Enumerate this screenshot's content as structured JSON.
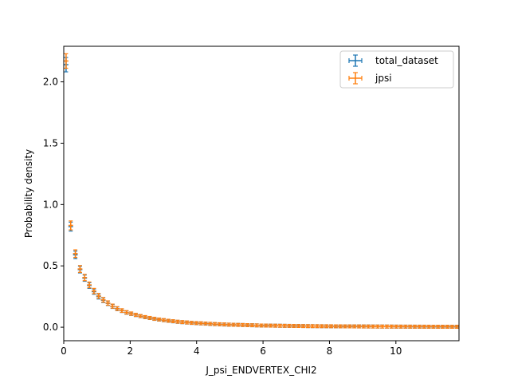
{
  "chart_data": {
    "type": "scatter",
    "title": "",
    "xlabel": "J_psi_ENDVERTEX_CHI2",
    "ylabel": "Probability density",
    "xlim": [
      0,
      11.9
    ],
    "ylim": [
      -0.11,
      2.29
    ],
    "xticks": [
      0,
      2,
      4,
      6,
      8,
      10
    ],
    "yticks": [
      0.0,
      0.5,
      1.0,
      1.5,
      2.0
    ],
    "xtick_labels": [
      "0",
      "2",
      "4",
      "6",
      "8",
      "10"
    ],
    "ytick_labels": [
      "0.0",
      "0.5",
      "1.0",
      "1.5",
      "2.0"
    ],
    "legend": "top-right",
    "grid": false,
    "bin_width": 0.14,
    "series": [
      {
        "name": "total_dataset",
        "color": "#1f77b4",
        "x": [
          0.07,
          0.21,
          0.35,
          0.49,
          0.63,
          0.77,
          0.91,
          1.05,
          1.19,
          1.33,
          1.47,
          1.61,
          1.75,
          1.89,
          2.03,
          2.17,
          2.31,
          2.45,
          2.59,
          2.73,
          2.87,
          3.01,
          3.15,
          3.29,
          3.43,
          3.57,
          3.71,
          3.85,
          3.99,
          4.13,
          4.27,
          4.41,
          4.55,
          4.69,
          4.83,
          4.97,
          5.11,
          5.25,
          5.39,
          5.53,
          5.67,
          5.81,
          5.95,
          6.09,
          6.23,
          6.37,
          6.51,
          6.65,
          6.79,
          6.93,
          7.07,
          7.21,
          7.35,
          7.49,
          7.63,
          7.77,
          7.91,
          8.05,
          8.19,
          8.33,
          8.47,
          8.61,
          8.75,
          8.89,
          9.03,
          9.17,
          9.31,
          9.45,
          9.59,
          9.73,
          9.87,
          10.01,
          10.15,
          10.29,
          10.43,
          10.57,
          10.71,
          10.85,
          10.99,
          11.13,
          11.27,
          11.41,
          11.55,
          11.69,
          11.83
        ],
        "y": [
          2.14,
          0.82,
          0.59,
          0.47,
          0.4,
          0.34,
          0.29,
          0.25,
          0.22,
          0.195,
          0.17,
          0.15,
          0.135,
          0.12,
          0.11,
          0.1,
          0.09,
          0.082,
          0.075,
          0.068,
          0.062,
          0.057,
          0.052,
          0.048,
          0.044,
          0.041,
          0.038,
          0.035,
          0.033,
          0.031,
          0.029,
          0.027,
          0.025,
          0.024,
          0.022,
          0.021,
          0.02,
          0.019,
          0.018,
          0.017,
          0.016,
          0.015,
          0.014,
          0.0135,
          0.013,
          0.0125,
          0.012,
          0.0115,
          0.011,
          0.0105,
          0.01,
          0.0095,
          0.009,
          0.0088,
          0.0085,
          0.0082,
          0.008,
          0.0078,
          0.0075,
          0.0072,
          0.007,
          0.0068,
          0.0066,
          0.0064,
          0.0062,
          0.006,
          0.0058,
          0.0056,
          0.0055,
          0.0054,
          0.0052,
          0.005,
          0.0049,
          0.0048,
          0.0047,
          0.0046,
          0.0045,
          0.0044,
          0.0043,
          0.0042,
          0.0041,
          0.004,
          0.0039,
          0.0038,
          0.0037
        ]
      },
      {
        "name": "jpsi",
        "color": "#ff7f0e",
        "x": [
          0.07,
          0.21,
          0.35,
          0.49,
          0.63,
          0.77,
          0.91,
          1.05,
          1.19,
          1.33,
          1.47,
          1.61,
          1.75,
          1.89,
          2.03,
          2.17,
          2.31,
          2.45,
          2.59,
          2.73,
          2.87,
          3.01,
          3.15,
          3.29,
          3.43,
          3.57,
          3.71,
          3.85,
          3.99,
          4.13,
          4.27,
          4.41,
          4.55,
          4.69,
          4.83,
          4.97,
          5.11,
          5.25,
          5.39,
          5.53,
          5.67,
          5.81,
          5.95,
          6.09,
          6.23,
          6.37,
          6.51,
          6.65,
          6.79,
          6.93,
          7.07,
          7.21,
          7.35,
          7.49,
          7.63,
          7.77,
          7.91,
          8.05,
          8.19,
          8.33,
          8.47,
          8.61,
          8.75,
          8.89,
          9.03,
          9.17,
          9.31,
          9.45,
          9.59,
          9.73,
          9.87,
          10.01,
          10.15,
          10.29,
          10.43,
          10.57,
          10.71,
          10.85,
          10.99,
          11.13,
          11.27,
          11.41,
          11.55,
          11.69,
          11.83
        ],
        "y": [
          2.17,
          0.83,
          0.6,
          0.475,
          0.405,
          0.345,
          0.295,
          0.255,
          0.223,
          0.197,
          0.172,
          0.152,
          0.136,
          0.121,
          0.111,
          0.101,
          0.091,
          0.083,
          0.076,
          0.069,
          0.063,
          0.058,
          0.053,
          0.049,
          0.045,
          0.042,
          0.039,
          0.036,
          0.034,
          0.032,
          0.03,
          0.028,
          0.026,
          0.024,
          0.023,
          0.021,
          0.02,
          0.019,
          0.018,
          0.017,
          0.016,
          0.015,
          0.014,
          0.0135,
          0.013,
          0.0125,
          0.012,
          0.0115,
          0.011,
          0.0105,
          0.01,
          0.0095,
          0.009,
          0.0088,
          0.0085,
          0.0082,
          0.008,
          0.0078,
          0.0075,
          0.0072,
          0.007,
          0.0068,
          0.0066,
          0.0064,
          0.0062,
          0.006,
          0.0058,
          0.0056,
          0.0055,
          0.0054,
          0.0052,
          0.005,
          0.0049,
          0.0048,
          0.0047,
          0.0046,
          0.0045,
          0.0044,
          0.0043,
          0.0042,
          0.0041,
          0.004,
          0.0039,
          0.0038,
          0.0037
        ]
      }
    ]
  }
}
